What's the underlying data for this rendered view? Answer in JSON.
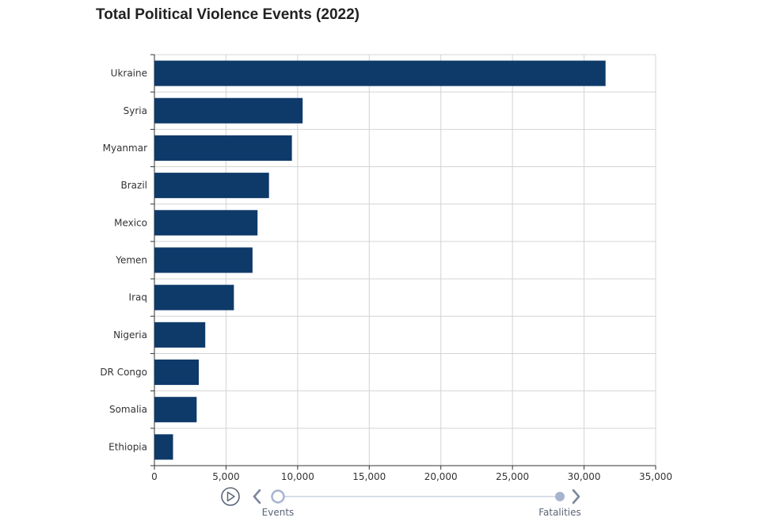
{
  "chart_data": {
    "type": "bar",
    "orientation": "horizontal",
    "title": "Total Political Violence Events (2022)",
    "categories": [
      "Ukraine",
      "Syria",
      "Myanmar",
      "Brazil",
      "Mexico",
      "Yemen",
      "Iraq",
      "Nigeria",
      "DR Congo",
      "Somalia",
      "Ethiopia"
    ],
    "values": [
      31500,
      10350,
      9600,
      8000,
      7200,
      6850,
      5550,
      3550,
      3100,
      2950,
      1300
    ],
    "xlim": [
      0,
      35000
    ],
    "xticks": [
      0,
      5000,
      10000,
      15000,
      20000,
      25000,
      30000,
      35000
    ],
    "xtick_labels": [
      "0",
      "5,000",
      "10,000",
      "15,000",
      "20,000",
      "25,000",
      "30,000",
      "35,000"
    ],
    "xlabel": "",
    "ylabel": "",
    "grid": true,
    "bar_color": "#0e3a6a"
  },
  "timeline": {
    "steps": [
      "Events",
      "Fatalities"
    ],
    "current_index": 0,
    "play_icon": "play-icon",
    "prev_icon": "chevron-left-icon",
    "next_icon": "chevron-right-icon",
    "accent_color": "#a7b4cf"
  }
}
